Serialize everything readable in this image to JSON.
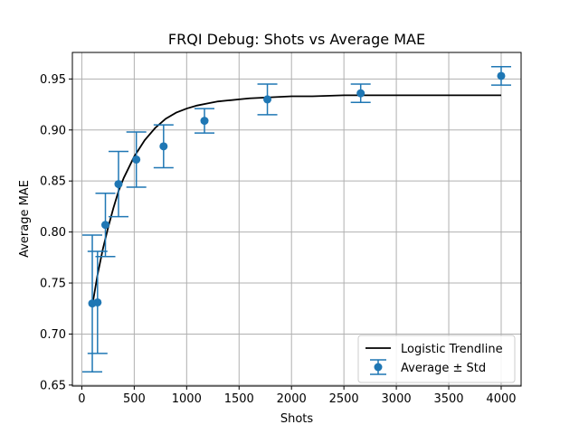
{
  "chart_data": {
    "type": "scatter",
    "title": "FRQI Debug: Shots vs Average MAE",
    "xlabel": "Shots",
    "ylabel": "Average MAE",
    "xlim": [
      -90,
      4190
    ],
    "ylim": [
      0.649,
      0.976
    ],
    "xticks": [
      0,
      500,
      1000,
      1500,
      2000,
      2500,
      3000,
      3500,
      4000
    ],
    "xtick_labels": [
      "0",
      "500",
      "1000",
      "1500",
      "2000",
      "2500",
      "3000",
      "3500",
      "4000"
    ],
    "yticks": [
      0.65,
      0.7,
      0.75,
      0.8,
      0.85,
      0.9,
      0.95
    ],
    "ytick_labels": [
      "0.65",
      "0.70",
      "0.75",
      "0.80",
      "0.85",
      "0.90",
      "0.95"
    ],
    "grid": true,
    "legend_position": "lower-right",
    "legend": [
      "Logistic Trendline",
      "Average ± Std"
    ],
    "colors": {
      "points": "#1f77b4",
      "trendline": "#000000",
      "grid": "#b0b0b0"
    },
    "points": {
      "name": "Average ± Std",
      "x": [
        100,
        150,
        225,
        350,
        520,
        780,
        1170,
        1770,
        2660,
        4000
      ],
      "y": [
        0.73,
        0.731,
        0.807,
        0.847,
        0.871,
        0.884,
        0.909,
        0.93,
        0.936,
        0.953
      ],
      "std": [
        0.067,
        0.05,
        0.031,
        0.032,
        0.027,
        0.021,
        0.012,
        0.015,
        0.009,
        0.009
      ]
    },
    "trendline": {
      "name": "Logistic Trendline",
      "x": [
        100,
        150,
        200,
        250,
        300,
        350,
        400,
        500,
        600,
        700,
        800,
        900,
        1000,
        1100,
        1200,
        1300,
        1400,
        1500,
        1600,
        1800,
        2000,
        2200,
        2500,
        3000,
        3500,
        4000
      ],
      "y": [
        0.728,
        0.758,
        0.783,
        0.804,
        0.823,
        0.84,
        0.853,
        0.874,
        0.89,
        0.902,
        0.911,
        0.917,
        0.921,
        0.924,
        0.926,
        0.928,
        0.929,
        0.93,
        0.931,
        0.932,
        0.933,
        0.933,
        0.934,
        0.934,
        0.934,
        0.934
      ]
    }
  }
}
